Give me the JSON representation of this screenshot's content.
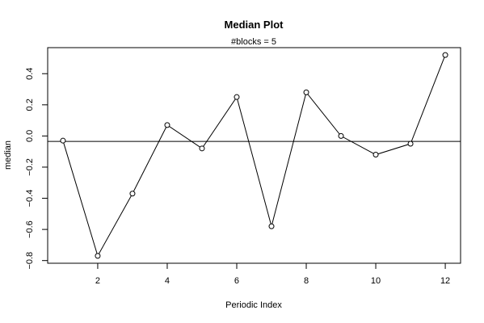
{
  "chart_data": {
    "type": "line",
    "title": "Median Plot",
    "subtitle": "#blocks =  5",
    "xlabel": "Periodic Index",
    "ylabel": "median",
    "x": [
      1,
      2,
      3,
      4,
      5,
      6,
      7,
      8,
      9,
      10,
      11,
      12
    ],
    "y": [
      -0.03,
      -0.77,
      -0.37,
      0.07,
      -0.08,
      0.25,
      -0.58,
      0.28,
      0.0,
      -0.12,
      -0.05,
      0.52
    ],
    "reference_line": -0.035,
    "xlim": [
      0.56,
      12.44
    ],
    "ylim": [
      -0.8172,
      0.5672
    ],
    "xticks": [
      2,
      4,
      6,
      8,
      10,
      12
    ],
    "yticks": [
      -0.8,
      -0.6,
      -0.4,
      -0.2,
      0.0,
      0.2,
      0.4
    ],
    "xtick_labels": [
      "2",
      "4",
      "6",
      "8",
      "10",
      "12"
    ],
    "ytick_labels": [
      "−0.8",
      "−0.6",
      "−0.4",
      "−0.2",
      "0.0",
      "0.2",
      "0.4"
    ],
    "grid": false,
    "marker": "open-circle",
    "line_color": "#000000"
  }
}
